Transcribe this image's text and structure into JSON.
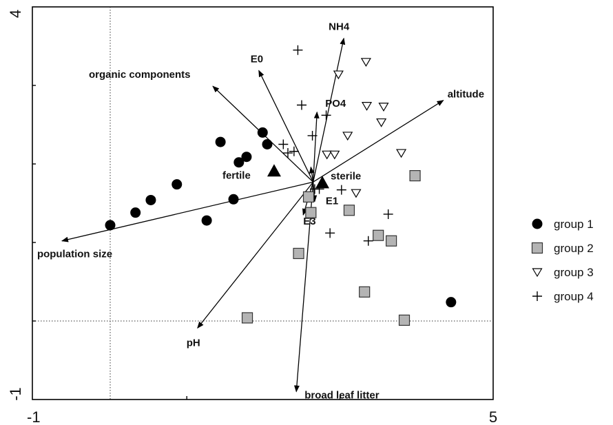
{
  "chart_data": {
    "type": "scatter",
    "title": "",
    "xlabel": "",
    "ylabel": "",
    "xlim": [
      -1,
      5
    ],
    "ylim": [
      -1,
      4
    ],
    "x_ticks": [
      -1,
      5
    ],
    "y_ticks": [
      -1,
      4
    ],
    "x_tick_labels": [
      "-1",
      "5"
    ],
    "y_tick_labels": [
      "-1",
      "4"
    ],
    "minor_y_ticks": [
      0,
      1,
      2,
      3
    ],
    "minor_x_ticks": [
      1,
      3
    ],
    "reference_lines": {
      "x": 0,
      "y": 0
    },
    "grid": false,
    "legend_position": "right",
    "series": [
      {
        "name": "group 1",
        "marker": "filled-circle",
        "color": "#000000",
        "points": [
          [
            0,
            1.22
          ],
          [
            0.33,
            1.38
          ],
          [
            0.53,
            1.54
          ],
          [
            0.87,
            1.74
          ],
          [
            1.26,
            1.28
          ],
          [
            1.44,
            2.28
          ],
          [
            1.61,
            1.55
          ],
          [
            1.68,
            2.02
          ],
          [
            1.78,
            2.09
          ],
          [
            1.99,
            2.4
          ],
          [
            2.05,
            2.25
          ],
          [
            4.45,
            0.24
          ]
        ]
      },
      {
        "name": "group 2",
        "marker": "grey-square",
        "color": "#b4b4b4",
        "points": [
          [
            1.79,
            0.04
          ],
          [
            2.46,
            0.86
          ],
          [
            2.59,
            1.58
          ],
          [
            2.62,
            1.38
          ],
          [
            3.12,
            1.41
          ],
          [
            3.32,
            0.37
          ],
          [
            3.5,
            1.09
          ],
          [
            3.67,
            1.02
          ],
          [
            3.84,
            0.01
          ],
          [
            3.98,
            1.85
          ]
        ]
      },
      {
        "name": "group 3",
        "marker": "open-triangle-down",
        "color": "#000000",
        "points": [
          [
            2.83,
            2.12
          ],
          [
            2.93,
            2.12
          ],
          [
            2.98,
            3.14
          ],
          [
            3.1,
            2.36
          ],
          [
            3.21,
            1.63
          ],
          [
            3.34,
            3.3
          ],
          [
            3.35,
            2.74
          ],
          [
            3.54,
            2.53
          ],
          [
            3.57,
            2.73
          ],
          [
            3.8,
            2.14
          ]
        ]
      },
      {
        "name": "group 4",
        "marker": "plus",
        "color": "#000000",
        "points": [
          [
            2.26,
            2.25
          ],
          [
            2.32,
            2.14
          ],
          [
            2.4,
            2.16
          ],
          [
            2.45,
            3.45
          ],
          [
            2.5,
            2.75
          ],
          [
            2.64,
            2.36
          ],
          [
            2.67,
            1.68
          ],
          [
            2.73,
            1.68
          ],
          [
            2.82,
            2.62
          ],
          [
            2.87,
            1.12
          ],
          [
            3.02,
            1.67
          ],
          [
            3.37,
            1.02
          ],
          [
            3.63,
            1.36
          ]
        ]
      }
    ],
    "centroids": [
      {
        "label": "fertile",
        "marker": "filled-triangle-up",
        "x": 2.14,
        "y": 1.91
      },
      {
        "label": "sterile",
        "marker": "filled-triangle-up",
        "x": 2.77,
        "y": 1.76
      }
    ],
    "vectors": {
      "origin": [
        2.65,
        1.77
      ],
      "items": [
        {
          "label": "NH4",
          "x": 3.05,
          "y": 3.6
        },
        {
          "label": "E0",
          "x": 1.94,
          "y": 3.19
        },
        {
          "label": "organic components",
          "x": 1.34,
          "y": 2.99
        },
        {
          "label": "PO4",
          "x": 2.7,
          "y": 2.66
        },
        {
          "label": "altitude",
          "x": 4.35,
          "y": 2.81
        },
        {
          "label": "sterile",
          "x": 2.62,
          "y": 1.96
        },
        {
          "label": "population size",
          "x": -0.63,
          "y": 1.02
        },
        {
          "label": "E1",
          "x": 2.67,
          "y": 1.52
        },
        {
          "label": "E3",
          "x": 2.52,
          "y": 1.35
        },
        {
          "label": "pH",
          "x": 1.14,
          "y": -0.09
        },
        {
          "label": "broad leaf litter",
          "x": 2.43,
          "y": -0.9
        }
      ]
    }
  }
}
